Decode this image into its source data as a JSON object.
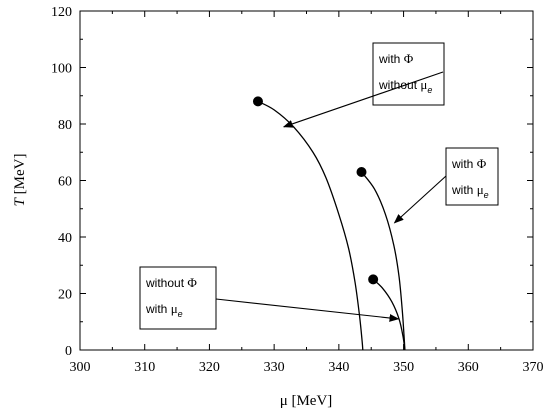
{
  "chart_data": {
    "type": "line",
    "xlabel": "μ [MeV]",
    "ylabel": "T [MeV]",
    "ylabel_italic": "T",
    "ylabel_unit": " [MeV]",
    "xlim": [
      300,
      370
    ],
    "ylim": [
      0,
      120
    ],
    "x_ticks": [
      300,
      310,
      320,
      330,
      340,
      350,
      360,
      370
    ],
    "y_ticks": [
      0,
      20,
      40,
      60,
      80,
      100,
      120
    ],
    "grid": false,
    "series": [
      {
        "name": "with Φ without μe",
        "x": [
          327.5,
          330,
          333,
          336,
          338,
          340,
          341.5,
          342.5,
          343.2,
          343.6,
          343.7
        ],
        "y": [
          88,
          85,
          79,
          70,
          61,
          48,
          36,
          24,
          12,
          3,
          0
        ],
        "endpoint": {
          "x": 327.5,
          "y": 88
        }
      },
      {
        "name": "with Φ with μe",
        "x": [
          343.5,
          345.5,
          347.2,
          348.5,
          349.3,
          349.8,
          350.1,
          350.2
        ],
        "y": [
          63,
          57,
          48,
          37,
          26,
          14,
          4,
          0
        ],
        "endpoint": {
          "x": 343.5,
          "y": 63
        }
      },
      {
        "name": "without Φ with μe",
        "x": [
          345.3,
          346.7,
          348.2,
          349.3,
          349.9,
          350.2
        ],
        "y": [
          25,
          22,
          17,
          11,
          5,
          0
        ],
        "endpoint": {
          "x": 345.3,
          "y": 25
        }
      }
    ],
    "annotations": [
      {
        "lines": [
          {
            "prefix": "with ",
            "symbol": "Φ",
            "sub": ""
          },
          {
            "prefix": "without ",
            "symbol": "μ",
            "sub": "e"
          }
        ],
        "arrow_target": {
          "x": 331.5,
          "y": 79
        }
      },
      {
        "lines": [
          {
            "prefix": "with ",
            "symbol": "Φ",
            "sub": ""
          },
          {
            "prefix": "with ",
            "symbol": "μ",
            "sub": "e"
          }
        ],
        "arrow_target": {
          "x": 348.6,
          "y": 45
        }
      },
      {
        "lines": [
          {
            "prefix": "without ",
            "symbol": "Φ",
            "sub": ""
          },
          {
            "prefix": "with ",
            "symbol": "μ",
            "sub": "e"
          }
        ],
        "arrow_target": {
          "x": 349.2,
          "y": 11
        }
      }
    ],
    "colors": {
      "line": "#000000",
      "background": "#ffffff"
    }
  }
}
